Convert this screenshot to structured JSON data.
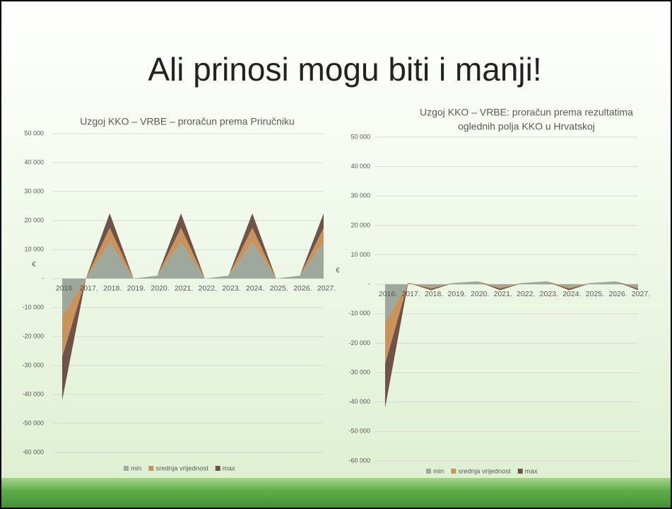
{
  "slide_title": "Ali prinosi mogu biti i manji!",
  "chart_data": [
    {
      "type": "stacked_area",
      "title": [
        "Uzgoj KKO – VRBE – proračun prema Priručniku"
      ],
      "ylabel": "€",
      "categories": [
        "2016.",
        "2017.",
        "2018.",
        "2019.",
        "2020.",
        "2021.",
        "2022.",
        "2023.",
        "2024.",
        "2025.",
        "2026.",
        "2027."
      ],
      "series": [
        {
          "name": "min",
          "color": "#9ea89c",
          "values": [
            -13000,
            0,
            12500,
            0,
            1000,
            12500,
            0,
            1000,
            12500,
            0,
            1000,
            12500
          ]
        },
        {
          "name": "srednja vrijednost",
          "color": "#c8945c",
          "values": [
            -14000,
            0,
            5000,
            0,
            0,
            5000,
            0,
            0,
            5000,
            0,
            0,
            5000
          ]
        },
        {
          "name": "max",
          "color": "#6f5349",
          "values": [
            -15000,
            0,
            5000,
            0,
            0,
            5000,
            0,
            0,
            5000,
            0,
            0,
            5000
          ]
        }
      ],
      "ylim": [
        -60000,
        50000
      ],
      "yticks": [
        {
          "value": 50000,
          "label": "50 000"
        },
        {
          "value": 40000,
          "label": "40 000"
        },
        {
          "value": 30000,
          "label": "30 000"
        },
        {
          "value": 20000,
          "label": "20 000"
        },
        {
          "value": 10000,
          "label": "10 000"
        },
        {
          "value": 0,
          "label": "-"
        },
        {
          "value": -10000,
          "label": "-10 000"
        },
        {
          "value": -20000,
          "label": "-20 000"
        },
        {
          "value": -30000,
          "label": "-30 000"
        },
        {
          "value": -40000,
          "label": "-40 000"
        },
        {
          "value": -50000,
          "label": "-50 000"
        },
        {
          "value": -60000,
          "label": "-60 000"
        }
      ],
      "grid": true,
      "legend": "bottom"
    },
    {
      "type": "stacked_area",
      "title": [
        "Uzgoj KKO – VRBE: proračun prema rezultatima",
        "oglednih polja KKO u Hrvatskoj"
      ],
      "ylabel": "€",
      "categories": [
        "2016.",
        "2017.",
        "2018.",
        "2019.",
        "2020.",
        "2021.",
        "2022.",
        "2023.",
        "2024.",
        "2025.",
        "2026.",
        "2027."
      ],
      "series": [
        {
          "name": "min",
          "color": "#9ea89c",
          "values": [
            -13000,
            500,
            -1000,
            500,
            1000,
            -1000,
            500,
            1000,
            -1000,
            500,
            1000,
            -1000
          ]
        },
        {
          "name": "srednja vrijednost",
          "color": "#c8945c",
          "values": [
            -14000,
            0,
            -500,
            0,
            0,
            -500,
            0,
            0,
            -500,
            0,
            0,
            -500
          ]
        },
        {
          "name": "max",
          "color": "#6f5349",
          "values": [
            -15000,
            0,
            -500,
            0,
            0,
            -500,
            0,
            0,
            -500,
            0,
            0,
            -500
          ]
        }
      ],
      "ylim": [
        -60000,
        50000
      ],
      "yticks": [
        {
          "value": 50000,
          "label": "50 000"
        },
        {
          "value": 40000,
          "label": "40 000"
        },
        {
          "value": 30000,
          "label": "30 000"
        },
        {
          "value": 20000,
          "label": "20 000"
        },
        {
          "value": 10000,
          "label": "10 000"
        },
        {
          "value": 0,
          "label": "-"
        },
        {
          "value": -10000,
          "label": "-10 000"
        },
        {
          "value": -20000,
          "label": "-20 000"
        },
        {
          "value": -30000,
          "label": "-30 000"
        },
        {
          "value": -40000,
          "label": "-40 000"
        },
        {
          "value": -50000,
          "label": "-50 000"
        },
        {
          "value": -60000,
          "label": "-60 000"
        }
      ],
      "grid": true,
      "legend": "bottom"
    }
  ]
}
